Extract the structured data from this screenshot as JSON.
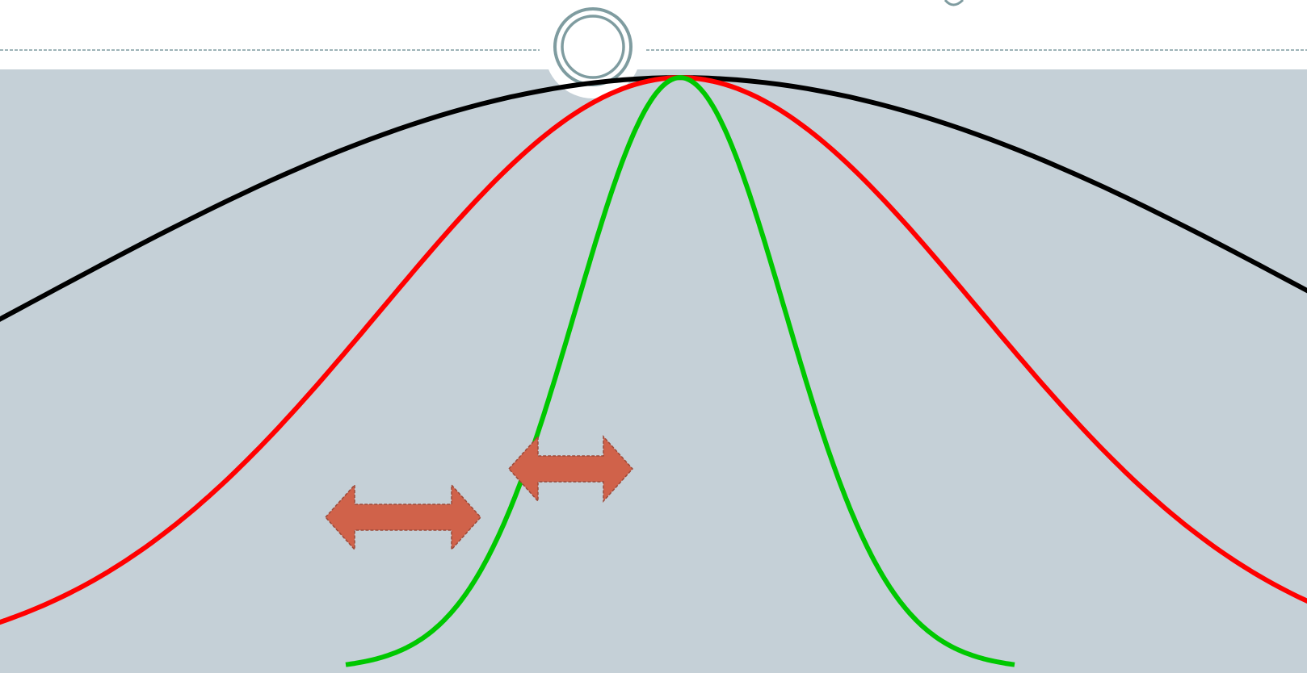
{
  "slide": {
    "header_background": "#ffffff",
    "panel_background": "#c5d0d7",
    "divider_color": "#7f9ca0",
    "ornament_ring_color": "#7f9ca0"
  },
  "chart_data": {
    "type": "line",
    "title": "",
    "xlabel": "",
    "ylabel": "",
    "grid": false,
    "xlim": [
      -4,
      4
    ],
    "ylim": [
      0,
      1
    ],
    "series": [
      {
        "color": "#000000",
        "spread": "wide",
        "sd": 1.0
      },
      {
        "color": "#ff0000",
        "spread": "medium",
        "sd": 0.55
      },
      {
        "color": "#00c800",
        "spread": "narrow",
        "sd": 0.22
      }
    ],
    "annotations": [
      {
        "type": "double-arrow",
        "between": [
          "black",
          "red"
        ],
        "color": "#d0624a"
      },
      {
        "type": "double-arrow",
        "between": [
          "red",
          "green"
        ],
        "color": "#d0624a"
      }
    ]
  }
}
